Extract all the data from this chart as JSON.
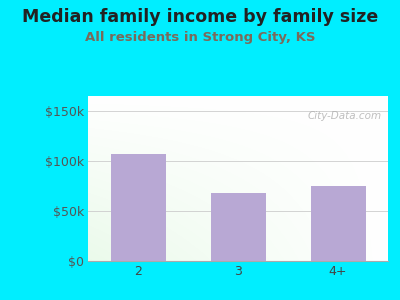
{
  "title": "Median family income by family size",
  "subtitle": "All residents in Strong City, KS",
  "categories": [
    "2",
    "3",
    "4+"
  ],
  "values": [
    107000,
    68000,
    75000
  ],
  "bar_color": "#b8a8d4",
  "title_color": "#222222",
  "subtitle_color": "#7a6a5a",
  "outer_bg": "#00eeff",
  "yticks": [
    0,
    50000,
    100000,
    150000
  ],
  "ytick_labels": [
    "$0",
    "$50k",
    "$100k",
    "$150k"
  ],
  "ylim": [
    0,
    165000
  ],
  "watermark": "City-Data.com",
  "title_fontsize": 12.5,
  "subtitle_fontsize": 9.5,
  "tick_fontsize": 9,
  "bar_width": 0.55
}
